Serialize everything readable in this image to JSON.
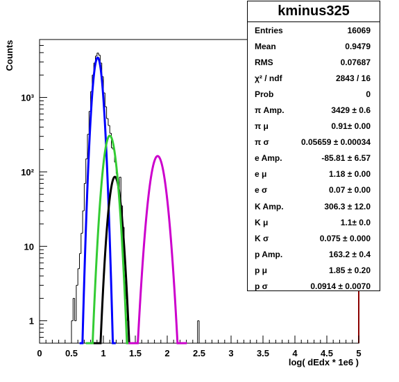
{
  "stats_box": {
    "title": "kminus325",
    "rows": [
      {
        "label": "Entries",
        "value": "16069"
      },
      {
        "label": "Mean",
        "value": "0.9479"
      },
      {
        "label": "RMS",
        "value": "0.07687"
      },
      {
        "label": "χ² / ndf",
        "value": "2843 / 16"
      },
      {
        "label": "Prob",
        "value": "0"
      },
      {
        "label": "π Amp.",
        "value": "3429 ± 0.6"
      },
      {
        "label": "π μ",
        "value": "0.91± 0.00"
      },
      {
        "label": "π σ",
        "value": "0.05659 ± 0.00034"
      },
      {
        "label": "e Amp.",
        "value": "-85.81 ± 6.57"
      },
      {
        "label": "e μ",
        "value": "1.18 ± 0.00"
      },
      {
        "label": "e σ",
        "value": "0.07 ± 0.00"
      },
      {
        "label": "K Amp.",
        "value": "306.3 ± 12.0"
      },
      {
        "label": "K μ",
        "value": "1.1± 0.0"
      },
      {
        "label": "K σ",
        "value": "0.075 ± 0.000"
      },
      {
        "label": "p Amp.",
        "value": "163.2 ± 0.4"
      },
      {
        "label": "p μ",
        "value": "1.85 ± 0.20"
      },
      {
        "label": "p σ",
        "value": "0.0914 ± 0.0070"
      }
    ]
  },
  "chart_data": {
    "type": "line",
    "xlabel": "log( dEdx * 1e6 )",
    "ylabel": "Counts",
    "xlim": [
      0,
      5
    ],
    "ylim": [
      0.5,
      6000
    ],
    "log_y": true,
    "x_ticks": [
      "0",
      "0.5",
      "1",
      "1.5",
      "2",
      "2.5",
      "3",
      "3.5",
      "4",
      "4.5",
      "5"
    ],
    "y_ticks": [
      {
        "value": 1,
        "label": "1"
      },
      {
        "value": 10,
        "label": "10"
      },
      {
        "value": 100,
        "label": "10²"
      },
      {
        "value": 1000,
        "label": "10³"
      }
    ],
    "histogram": {
      "bin_width": 0.025,
      "bins": [
        [
          0.5,
          1
        ],
        [
          0.525,
          2
        ],
        [
          0.55,
          1
        ],
        [
          0.575,
          3
        ],
        [
          0.6,
          5
        ],
        [
          0.625,
          8
        ],
        [
          0.65,
          15
        ],
        [
          0.675,
          30
        ],
        [
          0.7,
          70
        ],
        [
          0.725,
          150
        ],
        [
          0.75,
          320
        ],
        [
          0.775,
          650
        ],
        [
          0.8,
          1200
        ],
        [
          0.825,
          2000
        ],
        [
          0.85,
          2900
        ],
        [
          0.875,
          3600
        ],
        [
          0.9,
          3950
        ],
        [
          0.925,
          3700
        ],
        [
          0.95,
          2900
        ],
        [
          0.975,
          1900
        ],
        [
          1.0,
          1150
        ],
        [
          1.025,
          750
        ],
        [
          1.05,
          520
        ],
        [
          1.075,
          420
        ],
        [
          1.1,
          330
        ],
        [
          1.125,
          210
        ],
        [
          1.15,
          200
        ],
        [
          1.175,
          135
        ],
        [
          1.2,
          95
        ],
        [
          1.225,
          60
        ],
        [
          1.25,
          85
        ],
        [
          1.275,
          35
        ],
        [
          1.3,
          18
        ],
        [
          1.325,
          6
        ],
        [
          1.35,
          2
        ],
        [
          1.375,
          1
        ],
        [
          2.475,
          1
        ]
      ]
    },
    "series": [
      {
        "name": "π",
        "color": "#0000ff",
        "amp": 3429,
        "mu": 0.91,
        "sigma": 0.05659
      },
      {
        "name": "e",
        "color": "#000000",
        "amp": -85.81,
        "mu": 1.18,
        "sigma": 0.07
      },
      {
        "name": "K",
        "color": "#33cc33",
        "amp": 306.3,
        "mu": 1.1,
        "sigma": 0.075
      },
      {
        "name": "p",
        "color": "#cc00cc",
        "amp": 163.2,
        "mu": 1.85,
        "sigma": 0.0914
      }
    ]
  }
}
